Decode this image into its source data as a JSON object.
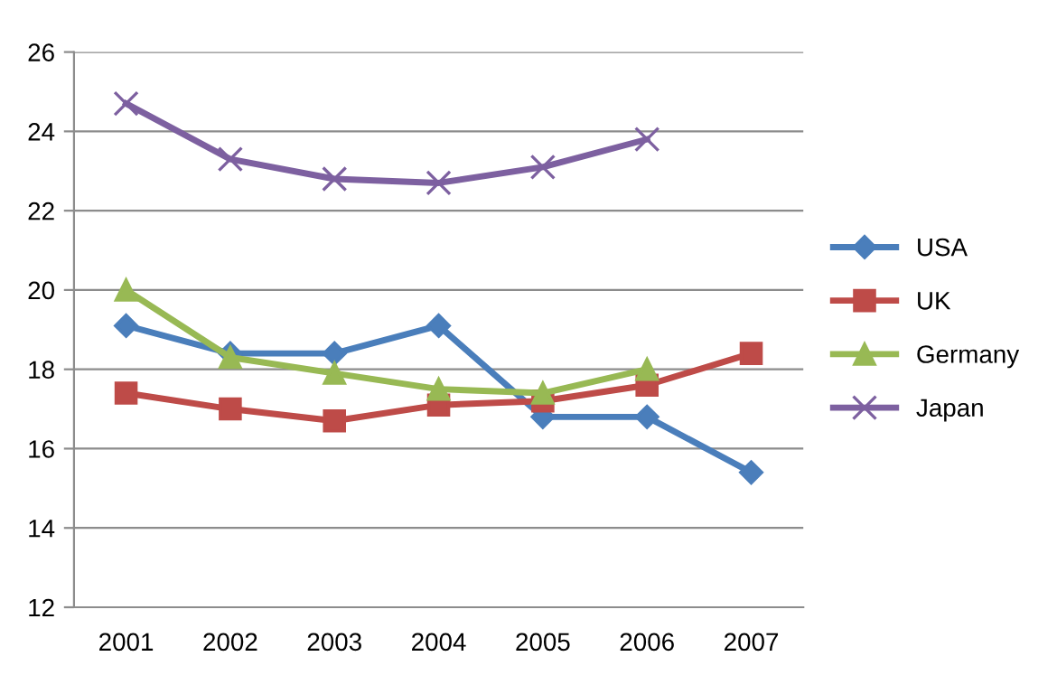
{
  "chart_data": {
    "type": "line",
    "categories": [
      "2001",
      "2002",
      "2003",
      "2004",
      "2005",
      "2006",
      "2007"
    ],
    "series": [
      {
        "name": "USA",
        "color": "#4a7ebb",
        "marker": "diamond",
        "values": [
          19.1,
          18.4,
          18.4,
          19.1,
          16.8,
          16.8,
          15.4
        ]
      },
      {
        "name": "UK",
        "color": "#be4b48",
        "marker": "square",
        "values": [
          17.4,
          17.0,
          16.7,
          17.1,
          17.2,
          17.6,
          18.4
        ]
      },
      {
        "name": "Germany",
        "color": "#98b954",
        "marker": "triangle",
        "values": [
          20.0,
          18.3,
          17.9,
          17.5,
          17.4,
          18.0,
          null
        ]
      },
      {
        "name": "Japan",
        "color": "#7d60a0",
        "marker": "cross",
        "values": [
          24.7,
          23.3,
          22.8,
          22.7,
          23.1,
          23.8,
          null
        ]
      }
    ],
    "ylim": [
      12,
      26
    ],
    "yticks": [
      12,
      14,
      16,
      18,
      20,
      22,
      24,
      26
    ],
    "grid": "y",
    "legend": "right"
  }
}
